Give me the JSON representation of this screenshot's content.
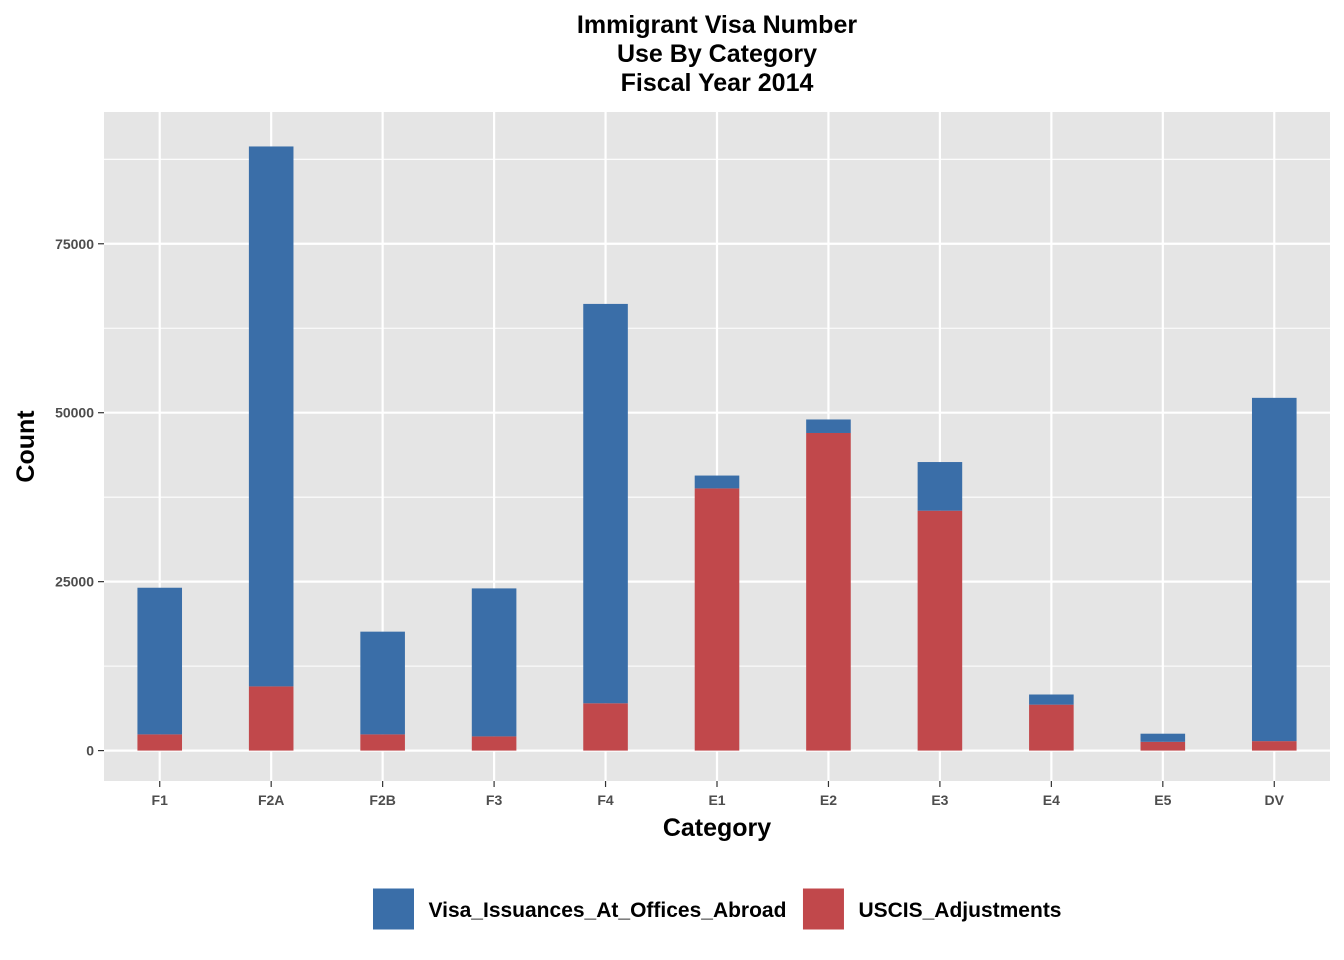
{
  "chart_data": {
    "type": "bar",
    "stacked": true,
    "title": [
      "Immigrant Visa Number",
      "Use By Category",
      "Fiscal Year 2014"
    ],
    "xlabel": "Category",
    "ylabel": "Count",
    "categories": [
      "F1",
      "F2A",
      "F2B",
      "F3",
      "F4",
      "E1",
      "E2",
      "E3",
      "E4",
      "E5",
      "DV"
    ],
    "series": [
      {
        "name": "USCIS_Adjustments",
        "color": "#c1484b",
        "values": [
          2400,
          9500,
          2400,
          2100,
          7000,
          38800,
          47000,
          35500,
          6800,
          1300,
          1400
        ]
      },
      {
        "name": "Visa_Issuances_At_Offices_Abroad",
        "color": "#3a6ea8",
        "values": [
          21700,
          79900,
          15200,
          21900,
          59100,
          1900,
          2000,
          7200,
          1500,
          1200,
          50800
        ]
      }
    ],
    "legend_order": [
      "Visa_Issuances_At_Offices_Abroad",
      "USCIS_Adjustments"
    ],
    "ylim": [
      -4500,
      94500
    ],
    "yticks": [
      0,
      25000,
      50000,
      75000
    ],
    "ytick_labels": [
      "0",
      "25000",
      "50000",
      "75000"
    ],
    "grid": true,
    "legend_position": "bottom",
    "panel_background": "#e5e5e5",
    "grid_color": "#ffffff"
  }
}
